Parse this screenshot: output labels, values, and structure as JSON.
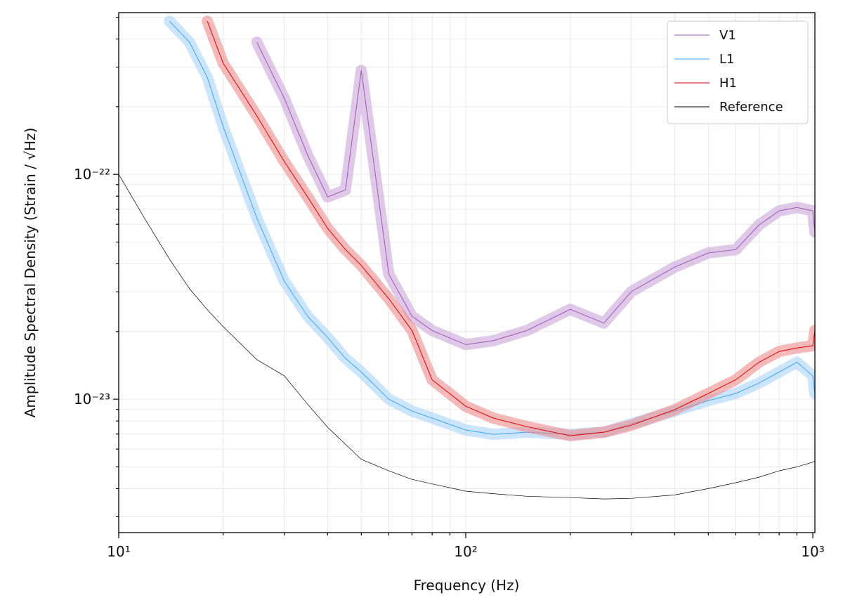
{
  "chart_data": {
    "type": "line",
    "xlabel": "Frequency (Hz)",
    "ylabel": "Amplitude Spectral Density (Strain / √Hz)",
    "xscale": "log",
    "yscale": "log",
    "grid": true,
    "legend": "upper right",
    "xlim": [
      10,
      1014
    ],
    "ylim": [
      2.55e-24,
      5.24e-22
    ],
    "xticks": [
      {
        "value": 10,
        "label": "10¹"
      },
      {
        "value": 100,
        "label": "10²"
      },
      {
        "value": 1000,
        "label": "10³"
      }
    ],
    "xminorticks": [
      20,
      30,
      40,
      50,
      60,
      70,
      80,
      90,
      200,
      300,
      400,
      500,
      600,
      700,
      800,
      900
    ],
    "yticks": [
      {
        "value": 1e-23,
        "label": "10⁻²³"
      },
      {
        "value": 1e-22,
        "label": "10⁻²²"
      }
    ],
    "yminorticks": [
      3e-24,
      4e-24,
      5e-24,
      6e-24,
      7e-24,
      8e-24,
      9e-24,
      2e-23,
      3e-23,
      4e-23,
      5e-23,
      6e-23,
      7e-23,
      8e-23,
      9e-23,
      2e-22,
      3e-22,
      4e-22,
      5e-22
    ],
    "x": [
      10,
      12,
      14,
      16,
      18,
      20,
      25,
      30,
      35,
      40,
      45,
      50,
      60,
      70,
      80,
      100,
      120,
      150,
      200,
      250,
      300,
      400,
      500,
      600,
      700,
      800,
      900,
      1000,
      1014
    ],
    "series": [
      {
        "name": "V1",
        "color": "#9b59b6",
        "band_color": "#c9a3d8",
        "values": [
          null,
          null,
          null,
          null,
          null,
          null,
          3.87e-22,
          2.18e-22,
          1.22e-22,
          7.94e-23,
          8.53e-23,
          2.9e-22,
          3.6e-23,
          2.34e-23,
          2.02e-23,
          1.75e-23,
          1.82e-23,
          2.02e-23,
          2.51e-23,
          2.18e-23,
          3.01e-23,
          3.87e-23,
          4.47e-23,
          4.63e-23,
          5.96e-23,
          6.88e-23,
          7.13e-23,
          6.88e-23,
          5.54e-23
        ]
      },
      {
        "name": "L1",
        "color": "#42a5f5",
        "band_color": "#a9d4fb",
        "values": [
          null,
          null,
          4.8e-22,
          3.87e-22,
          2.7e-22,
          1.63e-22,
          6.4e-23,
          3.35e-23,
          2.34e-23,
          1.88e-23,
          1.52e-23,
          1.32e-23,
          1e-23,
          8.85e-24,
          8.24e-24,
          7.29e-24,
          6.98e-24,
          7.13e-24,
          6.98e-24,
          7.13e-24,
          7.78e-24,
          8.85e-24,
          9.86e-24,
          1.06e-23,
          1.18e-23,
          1.32e-23,
          1.46e-23,
          1.27e-23,
          1.06e-23
        ]
      },
      {
        "name": "H1",
        "color": "#e00000",
        "band_color": "#f08a8a",
        "values": [
          null,
          null,
          null,
          null,
          4.8e-22,
          3.12e-22,
          1.82e-22,
          1.14e-22,
          7.94e-23,
          5.75e-23,
          4.63e-23,
          3.93e-23,
          2.8e-23,
          2.02e-23,
          1.22e-23,
          9.3e-24,
          8.24e-24,
          7.55e-24,
          6.88e-24,
          7.13e-24,
          7.66e-24,
          8.98e-24,
          1.06e-23,
          1.22e-23,
          1.46e-23,
          1.63e-23,
          1.69e-23,
          1.73e-23,
          2.02e-23
        ]
      },
      {
        "name": "Reference",
        "color": "#000000",
        "values": [
          1e-22,
          6.2e-23,
          4.2e-23,
          3.1e-23,
          2.5e-23,
          2.1e-23,
          1.5e-23,
          1.27e-23,
          9.5e-24,
          7.5e-24,
          6.3e-24,
          5.4e-24,
          4.8e-24,
          4.4e-24,
          4.2e-24,
          3.9e-24,
          3.8e-24,
          3.7e-24,
          3.65e-24,
          3.6e-24,
          3.62e-24,
          3.75e-24,
          4e-24,
          4.25e-24,
          4.5e-24,
          4.8e-24,
          5e-24,
          5.25e-24,
          5.3e-24
        ]
      }
    ]
  }
}
